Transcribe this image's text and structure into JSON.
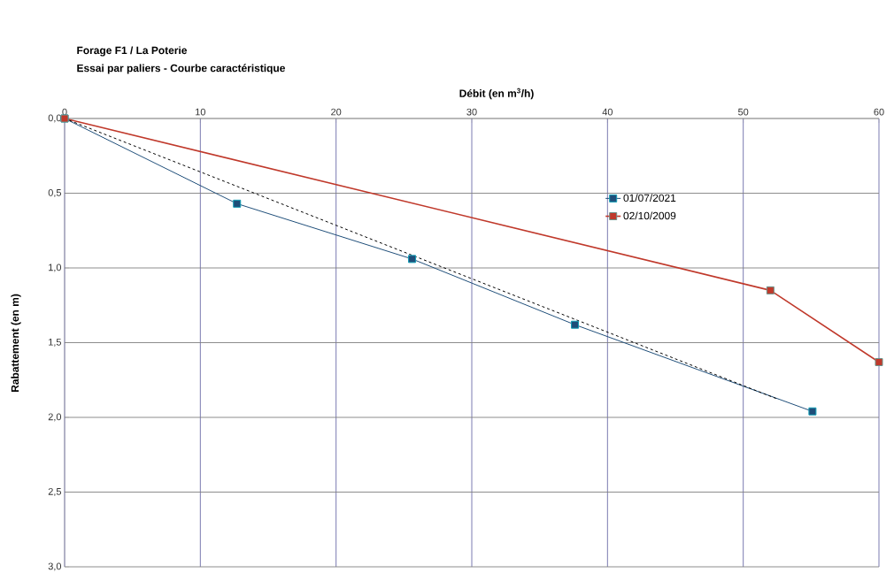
{
  "chart_data": {
    "type": "line",
    "title": "Forage F1 / La Poterie",
    "subtitle": "Essai par paliers -  Courbe caractéristique",
    "xlabel": "Débit (en m$^{3}$/h)",
    "ylabel": "Rabattement (en m)",
    "xlim": [
      0,
      60
    ],
    "xticks": [
      0,
      10,
      20,
      30,
      40,
      50,
      60
    ],
    "ylim": [
      3.0,
      0.0
    ],
    "yticks": [
      {
        "value": 0.0,
        "label": "0,0"
      },
      {
        "value": 0.5,
        "label": "0,5"
      },
      {
        "value": 1.0,
        "label": "1,0"
      },
      {
        "value": 1.5,
        "label": "1,5"
      },
      {
        "value": 2.0,
        "label": "2,0"
      },
      {
        "value": 2.5,
        "label": "2,5"
      },
      {
        "value": 3.0,
        "label": "3,0"
      }
    ],
    "grid": true,
    "legend": "right",
    "marker": "square",
    "series": [
      {
        "name": "01/07/2021",
        "color": "#1f4e79",
        "x": [
          0,
          12.7,
          25.6,
          37.6,
          55.1
        ],
        "values": [
          0,
          0.57,
          0.94,
          1.38,
          1.96
        ]
      },
      {
        "name": "02/10/2009",
        "color": "#c0392b",
        "x": [
          0,
          52.0,
          60.0
        ],
        "values": [
          0,
          1.15,
          1.63
        ]
      },
      {
        "color": "#000000",
        "marker": "none",
        "line_style": "dashed",
        "x": [
          0,
          52.6
        ],
        "values": [
          0,
          1.88
        ]
      }
    ]
  }
}
